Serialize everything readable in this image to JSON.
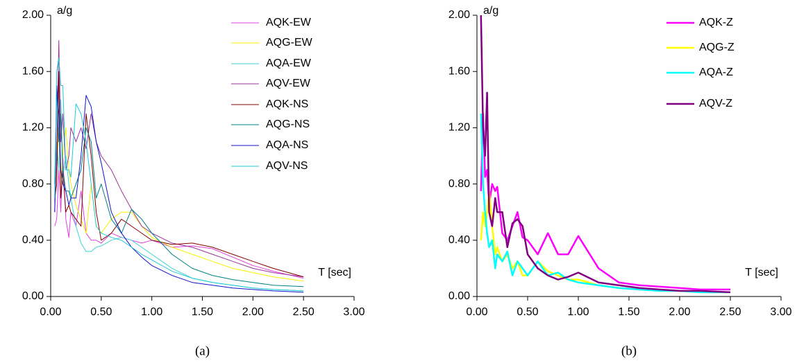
{
  "chart_data": [
    {
      "type": "line",
      "caption": "(a)",
      "ylabel": "a/g",
      "xlabel": "T [sec]",
      "xlim": [
        0,
        3
      ],
      "ylim": [
        0,
        2
      ],
      "xticks": [
        {
          "value": 0,
          "label": "0.00"
        },
        {
          "value": 0.5,
          "label": "0.50"
        },
        {
          "value": 1,
          "label": "1.00"
        },
        {
          "value": 1.5,
          "label": "1.50"
        },
        {
          "value": 2,
          "label": "2.00"
        },
        {
          "value": 2.5,
          "label": "2.50"
        },
        {
          "value": 3,
          "label": "3.00"
        }
      ],
      "yticks": [
        {
          "value": 0,
          "label": "0.00"
        },
        {
          "value": 0.4,
          "label": "0.40"
        },
        {
          "value": 0.8,
          "label": "0.80"
        },
        {
          "value": 1.2,
          "label": "1.20"
        },
        {
          "value": 1.6,
          "label": "1.60"
        },
        {
          "value": 2,
          "label": "2.00"
        }
      ],
      "x": [
        0.04,
        0.06,
        0.08,
        0.1,
        0.12,
        0.15,
        0.18,
        0.2,
        0.25,
        0.3,
        0.35,
        0.4,
        0.45,
        0.5,
        0.6,
        0.7,
        0.8,
        0.9,
        1.0,
        1.2,
        1.4,
        1.6,
        1.8,
        2.0,
        2.2,
        2.5
      ],
      "series": [
        {
          "name": "AQK-EW",
          "color": "#e040e0",
          "values": [
            0.5,
            0.55,
            0.9,
            0.6,
            1.0,
            0.55,
            0.42,
            0.6,
            0.5,
            0.75,
            0.45,
            0.4,
            0.4,
            0.38,
            0.45,
            0.42,
            0.4,
            0.38,
            0.4,
            0.35,
            0.36,
            0.34,
            0.28,
            0.22,
            0.18,
            0.13
          ]
        },
        {
          "name": "AQG-EW",
          "color": "#f5f000",
          "values": [
            0.7,
            0.9,
            1.2,
            0.8,
            1.0,
            1.2,
            0.9,
            0.8,
            0.65,
            0.55,
            0.45,
            0.8,
            0.5,
            0.45,
            0.55,
            0.6,
            0.6,
            0.5,
            0.42,
            0.35,
            0.3,
            0.25,
            0.2,
            0.17,
            0.14,
            0.11
          ]
        },
        {
          "name": "AQA-EW",
          "color": "#40d0d0",
          "values": [
            0.75,
            1.1,
            0.9,
            1.4,
            0.85,
            1.0,
            0.8,
            0.7,
            0.5,
            0.38,
            0.32,
            0.32,
            0.35,
            0.36,
            0.4,
            0.42,
            0.4,
            0.35,
            0.3,
            0.2,
            0.13,
            0.1,
            0.08,
            0.06,
            0.05,
            0.04
          ]
        },
        {
          "name": "AQV-EW",
          "color": "#993399",
          "values": [
            0.6,
            1.0,
            1.82,
            1.1,
            1.3,
            0.9,
            1.0,
            1.2,
            1.1,
            1.2,
            1.05,
            1.3,
            1.1,
            1.0,
            0.9,
            0.75,
            0.62,
            0.5,
            0.45,
            0.38,
            0.35,
            0.3,
            0.25,
            0.2,
            0.17,
            0.14
          ]
        },
        {
          "name": "AQK-NS",
          "color": "#800000",
          "values": [
            0.7,
            0.8,
            1.6,
            0.7,
            0.9,
            0.6,
            0.65,
            0.6,
            0.55,
            0.5,
            1.3,
            1.0,
            0.6,
            0.4,
            0.45,
            0.55,
            0.5,
            0.45,
            0.4,
            0.37,
            0.38,
            0.35,
            0.3,
            0.25,
            0.2,
            0.14
          ]
        },
        {
          "name": "AQG-NS",
          "color": "#008080",
          "values": [
            0.8,
            1.5,
            1.1,
            1.3,
            0.9,
            0.75,
            0.75,
            0.7,
            0.8,
            0.9,
            1.2,
            1.1,
            0.7,
            0.8,
            0.55,
            0.45,
            0.62,
            0.55,
            0.45,
            0.3,
            0.2,
            0.15,
            0.12,
            0.1,
            0.08,
            0.07
          ]
        },
        {
          "name": "AQA-NS",
          "color": "#1010cc",
          "values": [
            0.6,
            1.5,
            1.3,
            0.9,
            0.8,
            0.75,
            0.65,
            0.7,
            0.7,
            1.0,
            1.43,
            1.35,
            1.1,
            0.95,
            0.6,
            0.45,
            0.35,
            0.28,
            0.22,
            0.15,
            0.1,
            0.08,
            0.06,
            0.05,
            0.04,
            0.03
          ]
        },
        {
          "name": "AQV-NS",
          "color": "#20c8d8",
          "values": [
            0.7,
            1.6,
            1.7,
            1.5,
            1.5,
            0.9,
            0.9,
            0.85,
            1.37,
            1.3,
            1.1,
            0.8,
            0.5,
            0.45,
            0.42,
            0.4,
            0.35,
            0.3,
            0.26,
            0.18,
            0.13,
            0.1,
            0.08,
            0.06,
            0.05,
            0.04
          ]
        }
      ]
    },
    {
      "type": "line",
      "caption": "(b)",
      "ylabel": "a/g",
      "xlabel": "T [sec]",
      "xlim": [
        0,
        3
      ],
      "ylim": [
        0,
        2
      ],
      "xticks": [
        {
          "value": 0,
          "label": "0.00"
        },
        {
          "value": 0.5,
          "label": "0.50"
        },
        {
          "value": 1,
          "label": "1.00"
        },
        {
          "value": 1.5,
          "label": "1.50"
        },
        {
          "value": 2,
          "label": "2.00"
        },
        {
          "value": 2.5,
          "label": "2.50"
        },
        {
          "value": 3,
          "label": "3.00"
        }
      ],
      "yticks": [
        {
          "value": 0,
          "label": "0.00"
        },
        {
          "value": 0.4,
          "label": "0.40"
        },
        {
          "value": 0.8,
          "label": "0.80"
        },
        {
          "value": 1.2,
          "label": "1.20"
        },
        {
          "value": 1.6,
          "label": "1.60"
        },
        {
          "value": 2,
          "label": "2.00"
        }
      ],
      "x": [
        0.04,
        0.06,
        0.08,
        0.1,
        0.12,
        0.15,
        0.18,
        0.2,
        0.25,
        0.3,
        0.35,
        0.4,
        0.45,
        0.5,
        0.6,
        0.7,
        0.8,
        0.9,
        1.0,
        1.2,
        1.4,
        1.6,
        1.8,
        2.0,
        2.2,
        2.5
      ],
      "series": [
        {
          "name": "AQK-Z",
          "color": "#ff00ff",
          "values": [
            0.75,
            1.3,
            0.85,
            0.9,
            0.65,
            0.8,
            0.75,
            0.78,
            0.45,
            0.4,
            0.5,
            0.6,
            0.42,
            0.4,
            0.3,
            0.45,
            0.3,
            0.3,
            0.43,
            0.2,
            0.1,
            0.08,
            0.07,
            0.06,
            0.05,
            0.05
          ]
        },
        {
          "name": "AQG-Z",
          "color": "#ffff00",
          "values": [
            0.4,
            0.6,
            0.5,
            0.6,
            0.75,
            0.5,
            0.3,
            0.35,
            0.25,
            0.3,
            0.2,
            0.25,
            0.15,
            0.15,
            0.25,
            0.18,
            0.15,
            0.12,
            0.12,
            0.08,
            0.06,
            0.05,
            0.04,
            0.04,
            0.03,
            0.03
          ]
        },
        {
          "name": "AQA-Z",
          "color": "#00ffff",
          "values": [
            1.3,
            0.8,
            0.6,
            0.45,
            0.35,
            0.4,
            0.2,
            0.3,
            0.25,
            0.32,
            0.15,
            0.25,
            0.2,
            0.15,
            0.25,
            0.15,
            0.17,
            0.12,
            0.1,
            0.08,
            0.06,
            0.05,
            0.04,
            0.04,
            0.03,
            0.03
          ]
        },
        {
          "name": "AQV-Z",
          "color": "#800080",
          "values": [
            2.0,
            1.2,
            1.0,
            1.45,
            0.6,
            0.5,
            0.7,
            0.6,
            0.6,
            0.35,
            0.52,
            0.55,
            0.5,
            0.3,
            0.2,
            0.15,
            0.12,
            0.14,
            0.17,
            0.1,
            0.08,
            0.06,
            0.05,
            0.04,
            0.04,
            0.03
          ]
        }
      ]
    }
  ]
}
